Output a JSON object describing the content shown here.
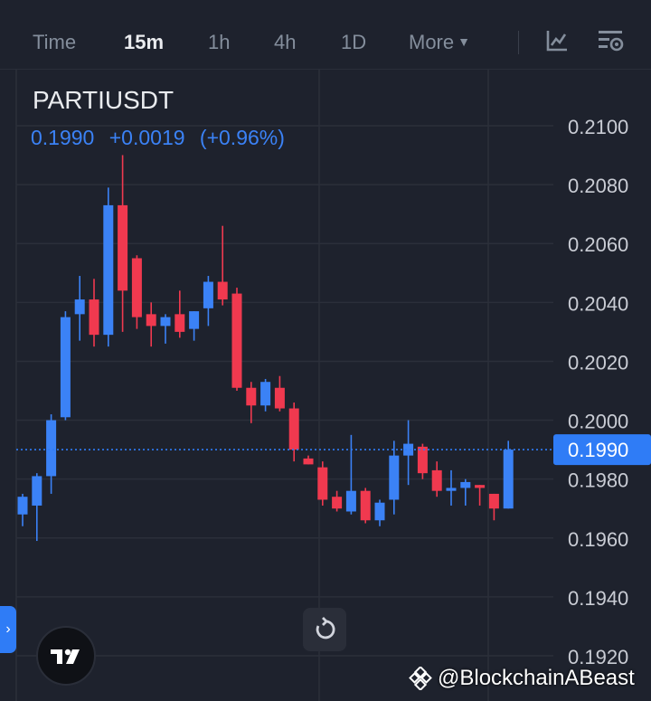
{
  "tabs": [
    {
      "label": "Time",
      "active": false
    },
    {
      "label": "15m",
      "active": true
    },
    {
      "label": "1h",
      "active": false
    },
    {
      "label": "4h",
      "active": false
    },
    {
      "label": "1D",
      "active": false
    },
    {
      "label": "More",
      "active": false
    }
  ],
  "symbol": "PARTIUSDT",
  "price_change": {
    "last": "0.1990",
    "change": "+0.0019",
    "percent": "(+0.96%)"
  },
  "watermark": "@BlockchainABeast",
  "colors": {
    "background": "#1e222d",
    "up": "#3b82f6",
    "down": "#f0394f",
    "grid": "#2b2f3a",
    "price_label": "#2f7cf6"
  },
  "icons": [
    "indicator-icon",
    "chart-settings-icon",
    "reset-chart-icon",
    "tradingview-logo-icon",
    "binance-logo-icon",
    "chevron-right-icon"
  ],
  "chart_data": {
    "type": "candlestick",
    "ylim": [
      0.1922,
      0.2109
    ],
    "yticks": [
      "0.2100",
      "0.2080",
      "0.2060",
      "0.2040",
      "0.2020",
      "0.2000",
      "0.1980",
      "0.1960",
      "0.1940",
      "0.1920"
    ],
    "last_price": "0.1990",
    "candles": [
      {
        "o": 0.1968,
        "h": 0.1975,
        "l": 0.1964,
        "c": 0.1974
      },
      {
        "o": 0.1971,
        "h": 0.1982,
        "l": 0.1959,
        "c": 0.1981
      },
      {
        "o": 0.1981,
        "h": 0.2002,
        "l": 0.1975,
        "c": 0.2
      },
      {
        "o": 0.2001,
        "h": 0.2037,
        "l": 0.2,
        "c": 0.2035
      },
      {
        "o": 0.2036,
        "h": 0.2049,
        "l": 0.2027,
        "c": 0.2041
      },
      {
        "o": 0.2041,
        "h": 0.2048,
        "l": 0.2025,
        "c": 0.2029
      },
      {
        "o": 0.2029,
        "h": 0.2079,
        "l": 0.2025,
        "c": 0.2073
      },
      {
        "o": 0.2073,
        "h": 0.209,
        "l": 0.203,
        "c": 0.2044
      },
      {
        "o": 0.2055,
        "h": 0.2056,
        "l": 0.2031,
        "c": 0.2035
      },
      {
        "o": 0.2036,
        "h": 0.204,
        "l": 0.2025,
        "c": 0.2032
      },
      {
        "o": 0.2032,
        "h": 0.2036,
        "l": 0.2026,
        "c": 0.2035
      },
      {
        "o": 0.2036,
        "h": 0.2044,
        "l": 0.2028,
        "c": 0.203
      },
      {
        "o": 0.2031,
        "h": 0.2037,
        "l": 0.2027,
        "c": 0.2037
      },
      {
        "o": 0.2038,
        "h": 0.2049,
        "l": 0.2032,
        "c": 0.2047
      },
      {
        "o": 0.2047,
        "h": 0.2066,
        "l": 0.2039,
        "c": 0.2041
      },
      {
        "o": 0.2043,
        "h": 0.2045,
        "l": 0.201,
        "c": 0.2011
      },
      {
        "o": 0.2011,
        "h": 0.2013,
        "l": 0.1999,
        "c": 0.2005
      },
      {
        "o": 0.2005,
        "h": 0.2014,
        "l": 0.2003,
        "c": 0.2013
      },
      {
        "o": 0.2011,
        "h": 0.2015,
        "l": 0.2003,
        "c": 0.2004
      },
      {
        "o": 0.2004,
        "h": 0.2006,
        "l": 0.1986,
        "c": 0.199
      },
      {
        "o": 0.1987,
        "h": 0.1988,
        "l": 0.1985,
        "c": 0.1985
      },
      {
        "o": 0.1984,
        "h": 0.1986,
        "l": 0.1971,
        "c": 0.1973
      },
      {
        "o": 0.1974,
        "h": 0.1976,
        "l": 0.1969,
        "c": 0.197
      },
      {
        "o": 0.1969,
        "h": 0.1995,
        "l": 0.1968,
        "c": 0.1976
      },
      {
        "o": 0.1976,
        "h": 0.1977,
        "l": 0.1965,
        "c": 0.1966
      },
      {
        "o": 0.1966,
        "h": 0.1973,
        "l": 0.1964,
        "c": 0.1972
      },
      {
        "o": 0.1973,
        "h": 0.1993,
        "l": 0.1968,
        "c": 0.1988
      },
      {
        "o": 0.1988,
        "h": 0.2,
        "l": 0.1978,
        "c": 0.1992
      },
      {
        "o": 0.1991,
        "h": 0.1992,
        "l": 0.198,
        "c": 0.1982
      },
      {
        "o": 0.1983,
        "h": 0.1986,
        "l": 0.1974,
        "c": 0.1976
      },
      {
        "o": 0.1976,
        "h": 0.1983,
        "l": 0.1971,
        "c": 0.1977
      },
      {
        "o": 0.1977,
        "h": 0.198,
        "l": 0.1971,
        "c": 0.1979
      },
      {
        "o": 0.1978,
        "h": 0.1978,
        "l": 0.1971,
        "c": 0.1977
      },
      {
        "o": 0.1975,
        "h": 0.1975,
        "l": 0.1966,
        "c": 0.197
      },
      {
        "o": 0.197,
        "h": 0.1993,
        "l": 0.197,
        "c": 0.199
      }
    ]
  }
}
